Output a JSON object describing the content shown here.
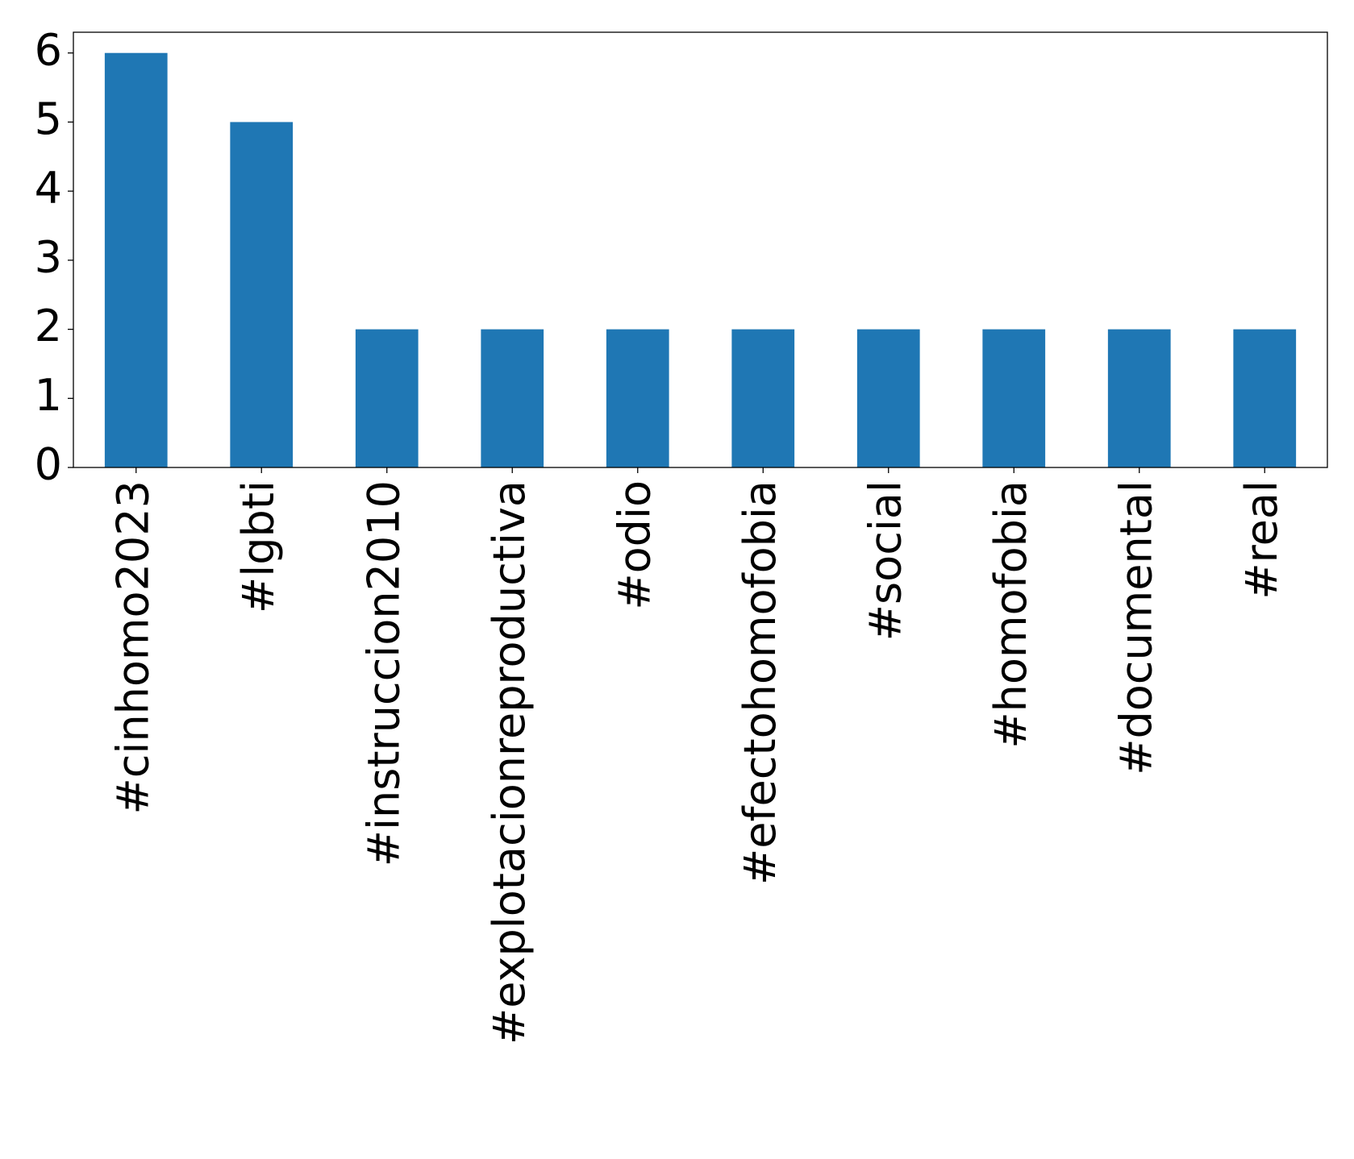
{
  "chart_data": {
    "type": "bar",
    "categories": [
      "#cinhomo2023",
      "#lgbti",
      "#instruccion2010",
      "#explotacionreproductiva",
      "#odio",
      "#efectohomofobia",
      "#social",
      "#homofobia",
      "#documental",
      "#real"
    ],
    "values": [
      6,
      5,
      2,
      2,
      2,
      2,
      2,
      2,
      2,
      2
    ],
    "color": "#1f77b4",
    "ylim": [
      0,
      6.3
    ],
    "yticks": [
      0,
      1,
      2,
      3,
      4,
      5,
      6
    ],
    "grid": false
  }
}
